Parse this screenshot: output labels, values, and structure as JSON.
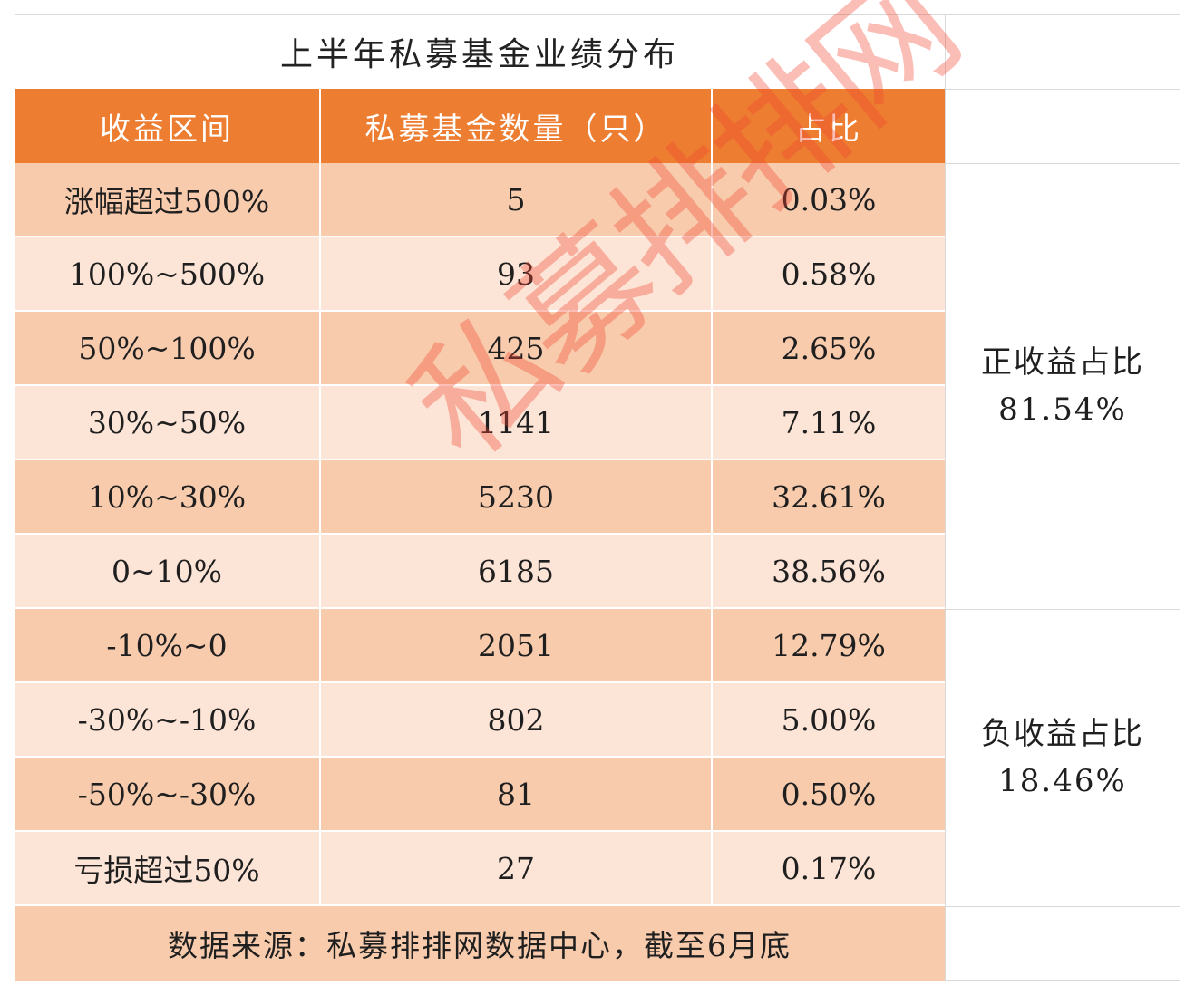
{
  "title": "上半年私募基金业绩分布",
  "headers": [
    "收益区间",
    "私募基金数量（只）",
    "占比"
  ],
  "rows": [
    {
      "range": "涨幅超过500%",
      "count": "5",
      "ratio": "0.03%"
    },
    {
      "range": "100%~500%",
      "count": "93",
      "ratio": "0.58%"
    },
    {
      "range": "50%~100%",
      "count": "425",
      "ratio": "2.65%"
    },
    {
      "range": "30%~50%",
      "count": "1141",
      "ratio": "7.11%"
    },
    {
      "range": "10%~30%",
      "count": "5230",
      "ratio": "32.61%"
    },
    {
      "range": "0~10%",
      "count": "6185",
      "ratio": "38.56%"
    },
    {
      "range": "-10%~0",
      "count": "2051",
      "ratio": "12.79%"
    },
    {
      "range": "-30%~-10%",
      "count": "802",
      "ratio": "5.00%"
    },
    {
      "range": "-50%~-30%",
      "count": "81",
      "ratio": "0.50%"
    },
    {
      "range": "亏损超过50%",
      "count": "27",
      "ratio": "0.17%"
    }
  ],
  "summary": {
    "positive_label": "正收益占比",
    "positive_value": "81.54%",
    "negative_label": "负收益占比",
    "negative_value": "18.46%"
  },
  "footer": "数据来源：私募排排网数据中心，截至6月底",
  "watermark": "私募排排网",
  "colors": {
    "header": "#ed7d31",
    "row_dark": "#f8cbad",
    "row_light": "#fce4d6"
  }
}
